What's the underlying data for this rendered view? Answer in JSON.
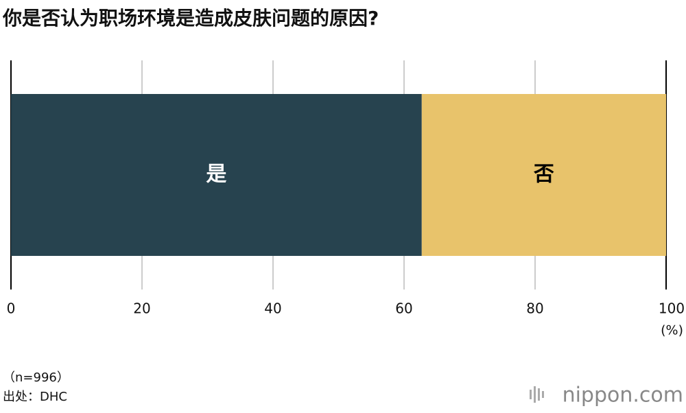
{
  "chart_data": {
    "type": "bar",
    "orientation": "horizontal",
    "stacked": true,
    "title": "你是否认为职场环境是造成皮肤问题的原因?",
    "series": [
      {
        "name": "是",
        "color": "#27434f",
        "label_color": "#ffffff",
        "values": [
          62.7
        ]
      },
      {
        "name": "否",
        "color": "#e8c36b",
        "label_color": "#000000",
        "values": [
          37.3
        ]
      }
    ],
    "xlim": [
      0,
      100
    ],
    "xticks": [
      0,
      20,
      40,
      60,
      80,
      100
    ],
    "x_unit": "(%)",
    "grid": true,
    "notes": [
      "（n=996）",
      "出处：DHC"
    ],
    "logo": "nippon.com"
  }
}
